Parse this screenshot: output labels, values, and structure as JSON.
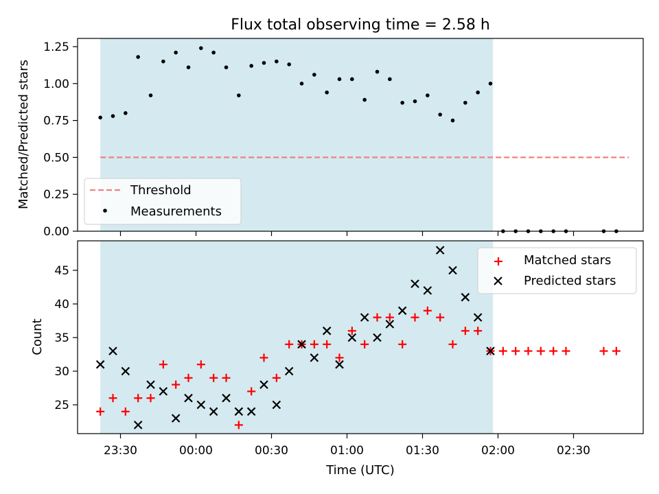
{
  "chart_data": [
    {
      "type": "scatter",
      "title": "Flux total observing time = 2.58 h",
      "xlabel": "",
      "ylabel": "Matched/Predicted stars",
      "ylim": [
        0,
        1.3
      ],
      "yticks": [
        "0.00",
        "0.25",
        "0.50",
        "0.75",
        "1.00",
        "1.25"
      ],
      "shaded_region": {
        "x_start": "23:22",
        "x_end": "01:58",
        "color": "#d4eaf0"
      },
      "legend": {
        "placement": "lower-left"
      },
      "series": [
        {
          "name": "Threshold",
          "kind": "line-dashed",
          "color": "#f08080",
          "x": [
            "23:22",
            "02:52"
          ],
          "y": [
            0.5,
            0.5
          ]
        },
        {
          "name": "Measurements",
          "kind": "dot",
          "color": "#000000",
          "x": [
            "23:22",
            "23:27",
            "23:32",
            "23:37",
            "23:42",
            "23:47",
            "23:52",
            "23:57",
            "00:02",
            "00:07",
            "00:12",
            "00:17",
            "00:22",
            "00:27",
            "00:32",
            "00:37",
            "00:42",
            "00:47",
            "00:52",
            "00:57",
            "01:02",
            "01:07",
            "01:12",
            "01:17",
            "01:22",
            "01:27",
            "01:32",
            "01:37",
            "01:42",
            "01:47",
            "01:52",
            "01:57",
            "02:02",
            "02:07",
            "02:12",
            "02:17",
            "02:22",
            "02:27",
            "02:42",
            "02:47"
          ],
          "y": [
            0.77,
            0.78,
            0.8,
            1.18,
            0.92,
            1.15,
            1.21,
            1.11,
            1.24,
            1.21,
            1.11,
            0.92,
            1.12,
            1.14,
            1.15,
            1.13,
            1.0,
            1.06,
            0.94,
            1.03,
            1.03,
            0.89,
            1.08,
            1.03,
            0.87,
            0.88,
            0.92,
            0.79,
            0.75,
            0.87,
            0.94,
            1.0,
            0,
            0,
            0,
            0,
            0,
            0,
            0,
            0
          ]
        }
      ]
    },
    {
      "type": "scatter",
      "title": "",
      "xlabel": "Time (UTC)",
      "ylabel": "Count",
      "ylim": [
        20.5,
        49
      ],
      "yticks": [
        "25",
        "30",
        "35",
        "40",
        "45"
      ],
      "xticks": [
        "23:30",
        "00:00",
        "00:30",
        "01:00",
        "01:30",
        "02:00",
        "02:30"
      ],
      "shaded_region": {
        "x_start": "23:22",
        "x_end": "01:58",
        "color": "#d4eaf0"
      },
      "legend": {
        "placement": "top-right"
      },
      "series": [
        {
          "name": "Matched stars",
          "kind": "plus",
          "color": "#ff0000",
          "x": [
            "23:22",
            "23:27",
            "23:32",
            "23:37",
            "23:42",
            "23:47",
            "23:52",
            "23:57",
            "00:02",
            "00:07",
            "00:12",
            "00:17",
            "00:22",
            "00:27",
            "00:32",
            "00:37",
            "00:42",
            "00:47",
            "00:52",
            "00:57",
            "01:02",
            "01:07",
            "01:12",
            "01:17",
            "01:22",
            "01:27",
            "01:32",
            "01:37",
            "01:42",
            "01:47",
            "01:52",
            "01:57",
            "02:02",
            "02:07",
            "02:12",
            "02:17",
            "02:22",
            "02:27",
            "02:42",
            "02:47"
          ],
          "y": [
            24,
            26,
            24,
            26,
            26,
            31,
            28,
            29,
            31,
            29,
            29,
            22,
            27,
            32,
            29,
            34,
            34,
            34,
            34,
            32,
            36,
            34,
            38,
            38,
            34,
            38,
            39,
            38,
            34,
            36,
            36,
            33,
            33,
            33,
            33,
            33,
            33,
            33,
            33,
            33
          ]
        },
        {
          "name": "Predicted stars",
          "kind": "cross",
          "color": "#000000",
          "x": [
            "23:22",
            "23:27",
            "23:32",
            "23:37",
            "23:42",
            "23:47",
            "23:52",
            "23:57",
            "00:02",
            "00:07",
            "00:12",
            "00:17",
            "00:22",
            "00:27",
            "00:32",
            "00:37",
            "00:42",
            "00:47",
            "00:52",
            "00:57",
            "01:02",
            "01:07",
            "01:12",
            "01:17",
            "01:22",
            "01:27",
            "01:32",
            "01:37",
            "01:42",
            "01:47",
            "01:52",
            "01:57"
          ],
          "y": [
            31,
            33,
            30,
            22,
            28,
            27,
            23,
            26,
            25,
            24,
            26,
            24,
            24,
            28,
            25,
            30,
            34,
            32,
            36,
            31,
            35,
            38,
            35,
            37,
            39,
            43,
            42,
            48,
            45,
            41,
            38,
            33
          ]
        }
      ]
    }
  ]
}
